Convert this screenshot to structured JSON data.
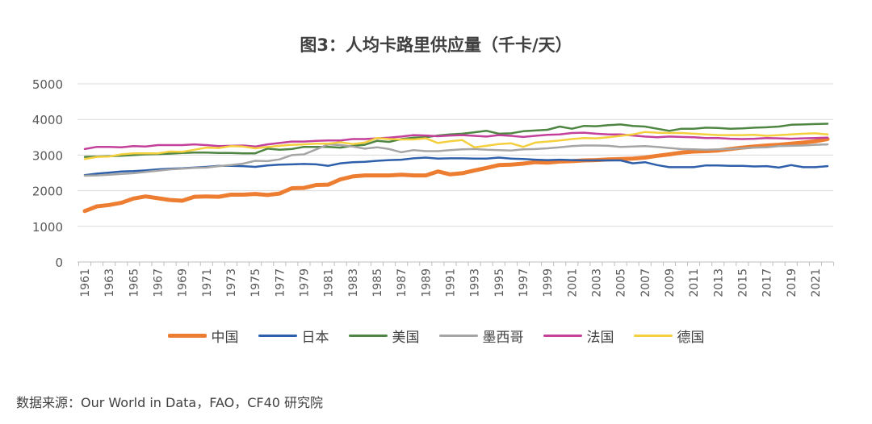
{
  "chart_data": {
    "type": "line",
    "title": "图3：人均卡路里供应量（千卡/天）",
    "xlabel": "",
    "ylabel": "",
    "ylim": [
      0,
      5000
    ],
    "yticks": [
      0,
      1000,
      2000,
      3000,
      4000,
      5000
    ],
    "grid": true,
    "legend_position": "bottom",
    "x": [
      1961,
      1962,
      1963,
      1964,
      1965,
      1966,
      1967,
      1968,
      1969,
      1970,
      1971,
      1972,
      1973,
      1974,
      1975,
      1976,
      1977,
      1978,
      1979,
      1980,
      1981,
      1982,
      1983,
      1984,
      1985,
      1986,
      1987,
      1988,
      1989,
      1990,
      1991,
      1992,
      1993,
      1994,
      1995,
      1996,
      1997,
      1998,
      1999,
      2000,
      2001,
      2002,
      2003,
      2004,
      2005,
      2006,
      2007,
      2008,
      2009,
      2010,
      2011,
      2012,
      2013,
      2014,
      2015,
      2016,
      2017,
      2018,
      2019,
      2020,
      2021,
      2022
    ],
    "x_tick_labels": [
      "1961",
      "1963",
      "1965",
      "1967",
      "1969",
      "1971",
      "1973",
      "1975",
      "1977",
      "1979",
      "1981",
      "1983",
      "1985",
      "1987",
      "1989",
      "1991",
      "1993",
      "1995",
      "1997",
      "1999",
      "2001",
      "2003",
      "2005",
      "2007",
      "2009",
      "2011",
      "2013",
      "2015",
      "2017",
      "2019",
      "2021"
    ],
    "series": [
      {
        "name": "中国",
        "color": "#ED7D31",
        "width": 5,
        "values": [
          1430,
          1560,
          1600,
          1660,
          1780,
          1840,
          1790,
          1740,
          1720,
          1830,
          1840,
          1830,
          1890,
          1890,
          1910,
          1880,
          1920,
          2070,
          2080,
          2160,
          2170,
          2320,
          2400,
          2430,
          2430,
          2430,
          2450,
          2430,
          2430,
          2540,
          2460,
          2490,
          2570,
          2640,
          2720,
          2730,
          2760,
          2800,
          2790,
          2820,
          2830,
          2850,
          2860,
          2880,
          2890,
          2900,
          2930,
          2980,
          3020,
          3070,
          3100,
          3110,
          3130,
          3170,
          3210,
          3240,
          3270,
          3290,
          3320,
          3350,
          3390,
          3450
        ]
      },
      {
        "name": "日本",
        "color": "#2E5FAA",
        "width": 2.5,
        "values": [
          2440,
          2480,
          2510,
          2540,
          2550,
          2570,
          2600,
          2620,
          2630,
          2650,
          2670,
          2700,
          2700,
          2690,
          2670,
          2710,
          2730,
          2740,
          2750,
          2740,
          2700,
          2770,
          2800,
          2810,
          2840,
          2860,
          2870,
          2910,
          2930,
          2900,
          2910,
          2910,
          2900,
          2900,
          2930,
          2900,
          2890,
          2870,
          2860,
          2870,
          2860,
          2850,
          2850,
          2850,
          2850,
          2770,
          2800,
          2720,
          2660,
          2660,
          2660,
          2710,
          2710,
          2700,
          2700,
          2680,
          2690,
          2650,
          2720,
          2660,
          2660,
          2690
        ]
      },
      {
        "name": "美国",
        "color": "#4E8542",
        "width": 2.5,
        "values": [
          2950,
          2960,
          2970,
          2980,
          3000,
          3020,
          3030,
          3040,
          3060,
          3070,
          3070,
          3060,
          3060,
          3050,
          3050,
          3180,
          3150,
          3170,
          3230,
          3230,
          3230,
          3210,
          3260,
          3290,
          3400,
          3370,
          3450,
          3490,
          3500,
          3550,
          3580,
          3600,
          3640,
          3680,
          3600,
          3610,
          3670,
          3690,
          3710,
          3800,
          3740,
          3820,
          3810,
          3840,
          3860,
          3820,
          3800,
          3740,
          3680,
          3740,
          3740,
          3770,
          3760,
          3740,
          3750,
          3770,
          3780,
          3800,
          3850,
          3860,
          3870,
          3880
        ]
      },
      {
        "name": "墨西哥",
        "color": "#A5A5A5",
        "width": 2.5,
        "values": [
          2420,
          2430,
          2450,
          2470,
          2490,
          2530,
          2560,
          2600,
          2620,
          2640,
          2650,
          2690,
          2720,
          2760,
          2840,
          2830,
          2880,
          3000,
          3020,
          3160,
          3300,
          3280,
          3240,
          3180,
          3220,
          3170,
          3080,
          3140,
          3110,
          3110,
          3140,
          3160,
          3170,
          3150,
          3140,
          3130,
          3160,
          3170,
          3190,
          3220,
          3250,
          3270,
          3270,
          3260,
          3230,
          3240,
          3250,
          3230,
          3200,
          3170,
          3160,
          3150,
          3160,
          3170,
          3190,
          3210,
          3220,
          3250,
          3260,
          3270,
          3290,
          3300
        ]
      },
      {
        "name": "法国",
        "color": "#C3409B",
        "width": 2.5,
        "values": [
          3170,
          3230,
          3230,
          3220,
          3250,
          3240,
          3280,
          3280,
          3280,
          3300,
          3280,
          3250,
          3260,
          3270,
          3240,
          3300,
          3340,
          3380,
          3380,
          3400,
          3410,
          3410,
          3450,
          3450,
          3470,
          3490,
          3520,
          3560,
          3550,
          3530,
          3550,
          3560,
          3540,
          3520,
          3560,
          3540,
          3510,
          3540,
          3570,
          3580,
          3620,
          3630,
          3600,
          3580,
          3580,
          3550,
          3520,
          3500,
          3520,
          3510,
          3500,
          3480,
          3480,
          3460,
          3450,
          3460,
          3480,
          3470,
          3460,
          3470,
          3480,
          3490
        ]
      },
      {
        "name": "德国",
        "color": "#F4D03F",
        "width": 2.5,
        "values": [
          2890,
          2950,
          2960,
          3020,
          3050,
          3050,
          3050,
          3100,
          3090,
          3150,
          3210,
          3200,
          3250,
          3240,
          3190,
          3230,
          3260,
          3290,
          3300,
          3320,
          3320,
          3360,
          3310,
          3350,
          3480,
          3450,
          3440,
          3440,
          3470,
          3340,
          3390,
          3420,
          3220,
          3260,
          3310,
          3330,
          3230,
          3350,
          3380,
          3410,
          3450,
          3480,
          3470,
          3500,
          3540,
          3580,
          3650,
          3630,
          3620,
          3620,
          3600,
          3580,
          3560,
          3560,
          3560,
          3570,
          3540,
          3560,
          3580,
          3600,
          3610,
          3580
        ]
      }
    ]
  },
  "source": "数据来源：Our World in Data，FAO，CF40 研究院"
}
